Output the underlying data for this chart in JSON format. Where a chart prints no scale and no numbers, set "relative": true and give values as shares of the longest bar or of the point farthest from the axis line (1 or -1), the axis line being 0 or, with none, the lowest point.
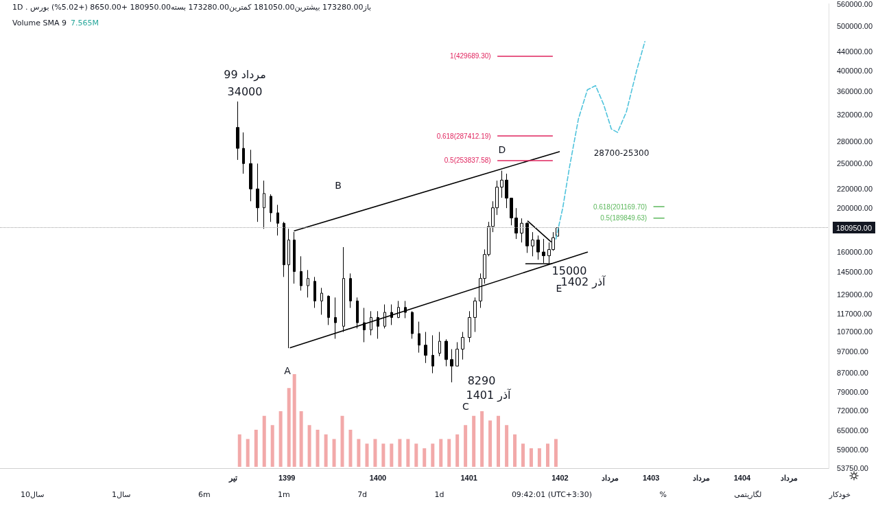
{
  "chart_data": [
    {
      "type": "candlestick",
      "title": "باز173280.00 بیشترین181050.00 کمترین173280.00 بسته180950.00 +8650.00 (+5.02%) بورس . 1D",
      "log": "y",
      "grid": false,
      "legend": false,
      "marker": "none",
      "xlim": [
        1395.85,
        1404.95
      ],
      "xticks": [
        {
          "value": 1398.41,
          "label": "تیر"
        },
        1399,
        1400,
        1401,
        1402,
        {
          "value": 1402.55,
          "label": "مرداد"
        },
        1403,
        {
          "value": 1403.55,
          "label": "مرداد"
        },
        1404,
        {
          "value": 1404.52,
          "label": "مرداد"
        }
      ],
      "ylim": [
        53750,
        560000
      ],
      "yticks": [
        {
          "value": 53750,
          "label": "53750.00"
        },
        {
          "value": 59000,
          "label": "59000.00"
        },
        {
          "value": 65000,
          "label": "65000.00"
        },
        {
          "value": 72000,
          "label": "72000.00"
        },
        {
          "value": 79000,
          "label": "79000.00"
        },
        {
          "value": 87000,
          "label": "87000.00"
        },
        {
          "value": 97000,
          "label": "97000.00"
        },
        {
          "value": 107000,
          "label": "107000.00"
        },
        {
          "value": 117000,
          "label": "117000.00"
        },
        {
          "value": 129000,
          "label": "129000.00"
        },
        {
          "value": 145000,
          "label": "145000.00"
        },
        {
          "value": 160000,
          "label": "160000.00"
        },
        {
          "value": 200000,
          "label": "200000.00"
        },
        {
          "value": 220000,
          "label": "220000.00"
        },
        {
          "value": 250000,
          "label": "250000.00"
        },
        {
          "value": 280000,
          "label": "280000.00"
        },
        {
          "value": 320000,
          "label": "320000.00"
        },
        {
          "value": 360000,
          "label": "360000.00"
        },
        {
          "value": 400000,
          "label": "400000.00"
        },
        {
          "value": 440000,
          "label": "440000.00"
        },
        {
          "value": 500000,
          "label": "500000.00"
        },
        {
          "value": 560000,
          "label": "560000.00"
        }
      ],
      "ref_lines": [
        {
          "axis": "y",
          "value": 180950,
          "label": "180950.00",
          "color": "#9e9e9e",
          "line_style": "dotted"
        }
      ],
      "series": [
        {
          "type": "candlestick",
          "color": "#000000",
          "x": [
            1398.459,
            1398.526,
            1398.602,
            1398.677,
            1398.752,
            1398.827,
            1398.902,
            1398.97,
            1399.023,
            1399.083,
            1399.158,
            1399.233,
            1399.308,
            1399.383,
            1399.459,
            1399.534,
            1399.624,
            1399.699,
            1399.774,
            1399.85,
            1399.925,
            1400.0,
            1400.075,
            1400.15,
            1400.226,
            1400.301,
            1400.376,
            1400.451,
            1400.526,
            1400.602,
            1400.677,
            1400.752,
            1400.812,
            1400.872,
            1400.932,
            1401.008,
            1401.068,
            1401.128,
            1401.173,
            1401.218,
            1401.263,
            1401.308,
            1401.361,
            1401.414,
            1401.466,
            1401.519,
            1401.579,
            1401.639,
            1401.699,
            1401.759,
            1401.82,
            1401.88,
            1401.925,
            1401.97
          ],
          "ohlc": [
            [
              300000,
              342000,
              254700,
              270000
            ],
            [
              270000,
              292600,
              237600,
              250000
            ],
            [
              250000,
              268000,
              206700,
              220000
            ],
            [
              220000,
              250000,
              186300,
              200000
            ],
            [
              200000,
              229400,
              179900,
              215000
            ],
            [
              212000,
              214100,
              186300,
              195000
            ],
            [
              195000,
              203000,
              173900,
              185000
            ],
            [
              185000,
              186300,
              141100,
              150000
            ],
            [
              150000,
              179900,
              98500,
              170000
            ],
            [
              170000,
              177000,
              136400,
              145000
            ],
            [
              145000,
              156600,
              131700,
              135000
            ],
            [
              135000,
              146100,
              127200,
              140000
            ],
            [
              138000,
              141100,
              120700,
              125000
            ],
            [
              125000,
              133500,
              116600,
              130000
            ],
            [
              128000,
              128600,
              110700,
              115000
            ],
            [
              115000,
              127200,
              103300,
              112000
            ],
            [
              110000,
              164000,
              106900,
              140000
            ],
            [
              140000,
              143600,
              120700,
              125000
            ],
            [
              125000,
              127200,
              108800,
              112000
            ],
            [
              112000,
              120700,
              101500,
              108000
            ],
            [
              108000,
              118700,
              105100,
              115000
            ],
            [
              115000,
              118700,
              103300,
              110000
            ],
            [
              110000,
              122800,
              108800,
              118000
            ],
            [
              118000,
              122800,
              110700,
              115000
            ],
            [
              115000,
              125000,
              114600,
              121000
            ],
            [
              121000,
              125000,
              114600,
              118000
            ],
            [
              118000,
              118700,
              103300,
              106000
            ],
            [
              106000,
              112600,
              96300,
              100000
            ],
            [
              100000,
              106900,
              91400,
              95000
            ],
            [
              95000,
              105100,
              86800,
              90000
            ],
            [
              96000,
              106900,
              94600,
              102000
            ],
            [
              102000,
              103000,
              89900,
              93000
            ],
            [
              93000,
              98000,
              82900,
              90000
            ],
            [
              90000,
              101500,
              89900,
              98000
            ],
            [
              98000,
              106900,
              93000,
              104000
            ],
            [
              104000,
              118700,
              101500,
              115000
            ],
            [
              115000,
              127200,
              106900,
              125000
            ],
            [
              125000,
              143600,
              120700,
              140000
            ],
            [
              140000,
              162100,
              136400,
              158000
            ],
            [
              158000,
              186300,
              156600,
              182000
            ],
            [
              182000,
              206700,
              176900,
              200000
            ],
            [
              200000,
              229400,
              192900,
              222000
            ],
            [
              222000,
              241200,
              210400,
              230000
            ],
            [
              230000,
              237600,
              199700,
              210000
            ],
            [
              210000,
              210400,
              183100,
              190000
            ],
            [
              190000,
              199700,
              170900,
              176000
            ],
            [
              176000,
              189600,
              167900,
              185000
            ],
            [
              185000,
              186000,
              159300,
              165000
            ],
            [
              165000,
              176900,
              156600,
              170000
            ],
            [
              170000,
              173900,
              153900,
              160000
            ],
            [
              160000,
              171000,
              151300,
              157000
            ],
            [
              157000,
              167900,
              150500,
              162000
            ],
            [
              162000,
              176900,
              161000,
              172000
            ],
            [
              173280,
              181050,
              173280,
              180950
            ]
          ]
        },
        {
          "type": "line",
          "color": "#000000",
          "line_style": "solid",
          "x": [
            1399.083,
            1401.992
          ],
          "values": [
            178100,
            265500
          ]
        },
        {
          "type": "line",
          "color": "#000000",
          "line_style": "solid",
          "x": [
            1399.038,
            1402.301
          ],
          "values": [
            98700,
            159900
          ]
        },
        {
          "type": "line",
          "color": "#000000",
          "line_style": "solid",
          "x": [
            1401.647,
            1401.9
          ],
          "values": [
            187000,
            168500
          ]
        },
        {
          "type": "line",
          "color": "#000000",
          "line_style": "solid",
          "x": [
            1401.624,
            1401.91
          ],
          "values": [
            150800,
            150800
          ]
        },
        {
          "type": "line",
          "color": "#4fc3dc",
          "line_style": "dashed",
          "x": [
            1401.955,
            1402.03,
            1402.105,
            1402.203,
            1402.301,
            1402.391,
            1402.481,
            1402.564,
            1402.632,
            1402.729,
            1402.842,
            1402.932
          ],
          "values": [
            170800,
            199700,
            246000,
            313600,
            362800,
            370400,
            336200,
            297700,
            292600,
            324600,
            399900,
            462800
          ]
        },
        {
          "type": "line",
          "name": "1(429689.30)",
          "color": "#e0245e",
          "line_style": "solid",
          "x": [
            1401.316,
            1401.917
          ],
          "values": [
            429689.3,
            429689.3
          ]
        },
        {
          "type": "line",
          "name": "0.618(287412.19)",
          "color": "#e0245e",
          "line_style": "solid",
          "x": [
            1401.316,
            1401.917
          ],
          "values": [
            287412.19,
            287412.19
          ]
        },
        {
          "type": "line",
          "name": "0.5(253837.58)",
          "color": "#e0245e",
          "line_style": "solid",
          "x": [
            1401.316,
            1401.917
          ],
          "values": [
            253837.58,
            253837.58
          ]
        },
        {
          "type": "line",
          "name": "0.618(201169.70)",
          "color": "#5cb85c",
          "line_style": "solid",
          "x": [
            1403.03,
            1403.143
          ],
          "values": [
            201169.7,
            201169.7
          ]
        },
        {
          "type": "line",
          "name": "0.5(189849.63)",
          "color": "#5cb85c",
          "line_style": "solid",
          "x": [
            1403.03,
            1403.143
          ],
          "values": [
            189849.63,
            189849.63
          ]
        }
      ],
      "annotations": [
        "مرداد 99",
        "34000",
        "B",
        "A",
        "8290",
        "آذر 1401",
        "C",
        "D",
        "15000",
        "آذر 1402",
        "E",
        "28700-25300",
        "10سال",
        "1سال",
        "6m",
        "1m",
        "7d",
        "1d",
        "09:42:01 (UTC+3:30)",
        "%",
        "لگاریتمی",
        "خودکار"
      ]
    },
    {
      "type": "bar",
      "relative": true,
      "title": "Volume SMA 9",
      "tick_labels": false,
      "legend": false,
      "grid": false,
      "xlim": [
        1395.85,
        1404.95
      ],
      "annotations": [
        "7.565M"
      ],
      "series": [
        {
          "color": "#f2a9a9",
          "x": [
            1398.481,
            1398.571,
            1398.662,
            1398.752,
            1398.842,
            1398.932,
            1399.023,
            1399.083,
            1399.158,
            1399.248,
            1399.338,
            1399.429,
            1399.519,
            1399.609,
            1399.699,
            1399.789,
            1399.88,
            1399.97,
            1400.06,
            1400.15,
            1400.241,
            1400.331,
            1400.421,
            1400.511,
            1400.602,
            1400.692,
            1400.782,
            1400.872,
            1400.962,
            1401.053,
            1401.143,
            1401.233,
            1401.323,
            1401.414,
            1401.504,
            1401.594,
            1401.684,
            1401.774,
            1401.865,
            1401.955
          ],
          "values": [
            0.35,
            0.3,
            0.4,
            0.55,
            0.45,
            0.6,
            0.85,
            1,
            0.6,
            0.45,
            0.4,
            0.35,
            0.3,
            0.55,
            0.4,
            0.3,
            0.25,
            0.3,
            0.25,
            0.25,
            0.3,
            0.3,
            0.25,
            0.2,
            0.25,
            0.3,
            0.3,
            0.35,
            0.45,
            0.55,
            0.6,
            0.5,
            0.55,
            0.45,
            0.35,
            0.25,
            0.2,
            0.2,
            0.25,
            0.3
          ]
        }
      ]
    }
  ]
}
